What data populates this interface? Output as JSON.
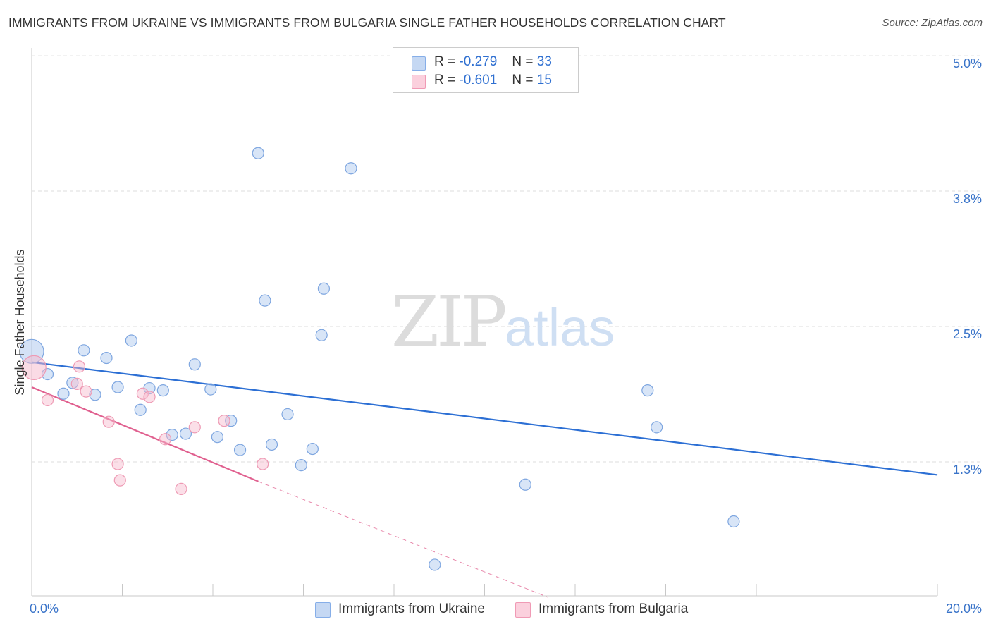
{
  "chart_data": {
    "type": "scatter",
    "title": "IMMIGRANTS FROM UKRAINE VS IMMIGRANTS FROM BULGARIA SINGLE FATHER HOUSEHOLDS CORRELATION CHART",
    "source": "Source: ZipAtlas.com",
    "ylabel": "Single Father Households",
    "xlabel": "",
    "x_tick_labels": [
      "0.0%",
      "20.0%"
    ],
    "y_tick_labels": [
      "1.3%",
      "2.5%",
      "3.8%",
      "5.0%"
    ],
    "y_ticks": [
      1.25,
      2.5,
      3.75,
      5.0
    ],
    "xlim": [
      0,
      20
    ],
    "ylim": [
      0,
      5.1
    ],
    "grid": "horizontal dashed",
    "watermark": "ZIPatlas",
    "series": [
      {
        "name": "Immigrants from Ukraine",
        "color": "#a9c6ee",
        "line_color": "#2c6fd4",
        "r_label": "R =",
        "r_value": "-0.279",
        "n_label": "N =",
        "n_value": "33",
        "trend": {
          "x0": 0.0,
          "y0": 2.17,
          "x1": 20.0,
          "y1": 1.13,
          "dashed_to": null
        },
        "points": [
          {
            "x": 0.0,
            "y": 2.27,
            "big": true
          },
          {
            "x": 0.35,
            "y": 2.06
          },
          {
            "x": 0.7,
            "y": 1.88
          },
          {
            "x": 0.9,
            "y": 1.98
          },
          {
            "x": 1.15,
            "y": 2.28
          },
          {
            "x": 1.4,
            "y": 1.87
          },
          {
            "x": 1.65,
            "y": 2.21
          },
          {
            "x": 1.9,
            "y": 1.94
          },
          {
            "x": 2.2,
            "y": 2.37
          },
          {
            "x": 2.4,
            "y": 1.73
          },
          {
            "x": 2.6,
            "y": 1.93
          },
          {
            "x": 2.9,
            "y": 1.91
          },
          {
            "x": 3.1,
            "y": 1.5
          },
          {
            "x": 3.4,
            "y": 1.51
          },
          {
            "x": 3.6,
            "y": 2.15
          },
          {
            "x": 4.1,
            "y": 1.48
          },
          {
            "x": 3.95,
            "y": 1.92
          },
          {
            "x": 4.4,
            "y": 1.63
          },
          {
            "x": 4.6,
            "y": 1.36
          },
          {
            "x": 5.0,
            "y": 4.1
          },
          {
            "x": 5.15,
            "y": 2.74
          },
          {
            "x": 5.3,
            "y": 1.41
          },
          {
            "x": 5.65,
            "y": 1.69
          },
          {
            "x": 5.95,
            "y": 1.22
          },
          {
            "x": 6.2,
            "y": 1.37
          },
          {
            "x": 6.4,
            "y": 2.42
          },
          {
            "x": 6.45,
            "y": 2.85
          },
          {
            "x": 7.05,
            "y": 3.96
          },
          {
            "x": 8.9,
            "y": 0.3
          },
          {
            "x": 10.9,
            "y": 1.04
          },
          {
            "x": 13.6,
            "y": 1.91
          },
          {
            "x": 13.8,
            "y": 1.57
          },
          {
            "x": 15.5,
            "y": 0.7
          }
        ]
      },
      {
        "name": "Immigrants from Bulgaria",
        "color": "#f6b8cb",
        "line_color": "#e0608f",
        "r_label": "R =",
        "r_value": "-0.601",
        "n_label": "N =",
        "n_value": "15",
        "trend": {
          "x0": 0.0,
          "y0": 1.94,
          "x1": 5.0,
          "y1": 1.07,
          "dashed_to": {
            "x": 11.4,
            "y": 0.0
          }
        },
        "points": [
          {
            "x": 0.05,
            "y": 2.12,
            "big": true
          },
          {
            "x": 0.35,
            "y": 1.82
          },
          {
            "x": 1.0,
            "y": 1.97
          },
          {
            "x": 1.2,
            "y": 1.9
          },
          {
            "x": 1.05,
            "y": 2.13
          },
          {
            "x": 1.7,
            "y": 1.62
          },
          {
            "x": 1.9,
            "y": 1.23
          },
          {
            "x": 1.95,
            "y": 1.08
          },
          {
            "x": 2.45,
            "y": 1.88
          },
          {
            "x": 2.6,
            "y": 1.85
          },
          {
            "x": 2.95,
            "y": 1.46
          },
          {
            "x": 3.3,
            "y": 1.0
          },
          {
            "x": 3.6,
            "y": 1.57
          },
          {
            "x": 4.25,
            "y": 1.63
          },
          {
            "x": 5.1,
            "y": 1.23
          }
        ]
      }
    ]
  }
}
